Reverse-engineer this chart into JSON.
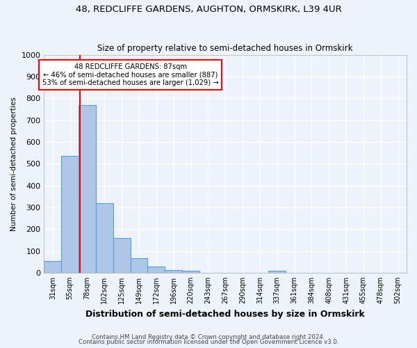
{
  "title": "48, REDCLIFFE GARDENS, AUGHTON, ORMSKIRK, L39 4UR",
  "subtitle": "Size of property relative to semi-detached houses in Ormskirk",
  "xlabel": "Distribution of semi-detached houses by size in Ormskirk",
  "ylabel": "Number of semi-detached properties",
  "categories": [
    "31sqm",
    "55sqm",
    "78sqm",
    "102sqm",
    "125sqm",
    "149sqm",
    "172sqm",
    "196sqm",
    "220sqm",
    "243sqm",
    "267sqm",
    "290sqm",
    "314sqm",
    "337sqm",
    "361sqm",
    "384sqm",
    "408sqm",
    "431sqm",
    "455sqm",
    "478sqm",
    "502sqm"
  ],
  "values": [
    55,
    535,
    770,
    320,
    158,
    68,
    30,
    13,
    10,
    0,
    0,
    0,
    0,
    10,
    0,
    0,
    0,
    0,
    0,
    0,
    0
  ],
  "bar_color": "#aec6e8",
  "bar_edge_color": "#5a9fd4",
  "red_line_index": 2,
  "property_label": "48 REDCLIFFE GARDENS: 87sqm",
  "annotation_line1": "← 46% of semi-detached houses are smaller (887)",
  "annotation_line2": "53% of semi-detached houses are larger (1,029) →",
  "annotation_box_color": "white",
  "annotation_box_edge": "red",
  "ylim": [
    0,
    1000
  ],
  "yticks": [
    0,
    100,
    200,
    300,
    400,
    500,
    600,
    700,
    800,
    900,
    1000
  ],
  "background_color": "#eef2fb",
  "grid_color": "white",
  "footer1": "Contains HM Land Registry data © Crown copyright and database right 2024.",
  "footer2": "Contains public sector information licensed under the Open Government Licence v3.0."
}
